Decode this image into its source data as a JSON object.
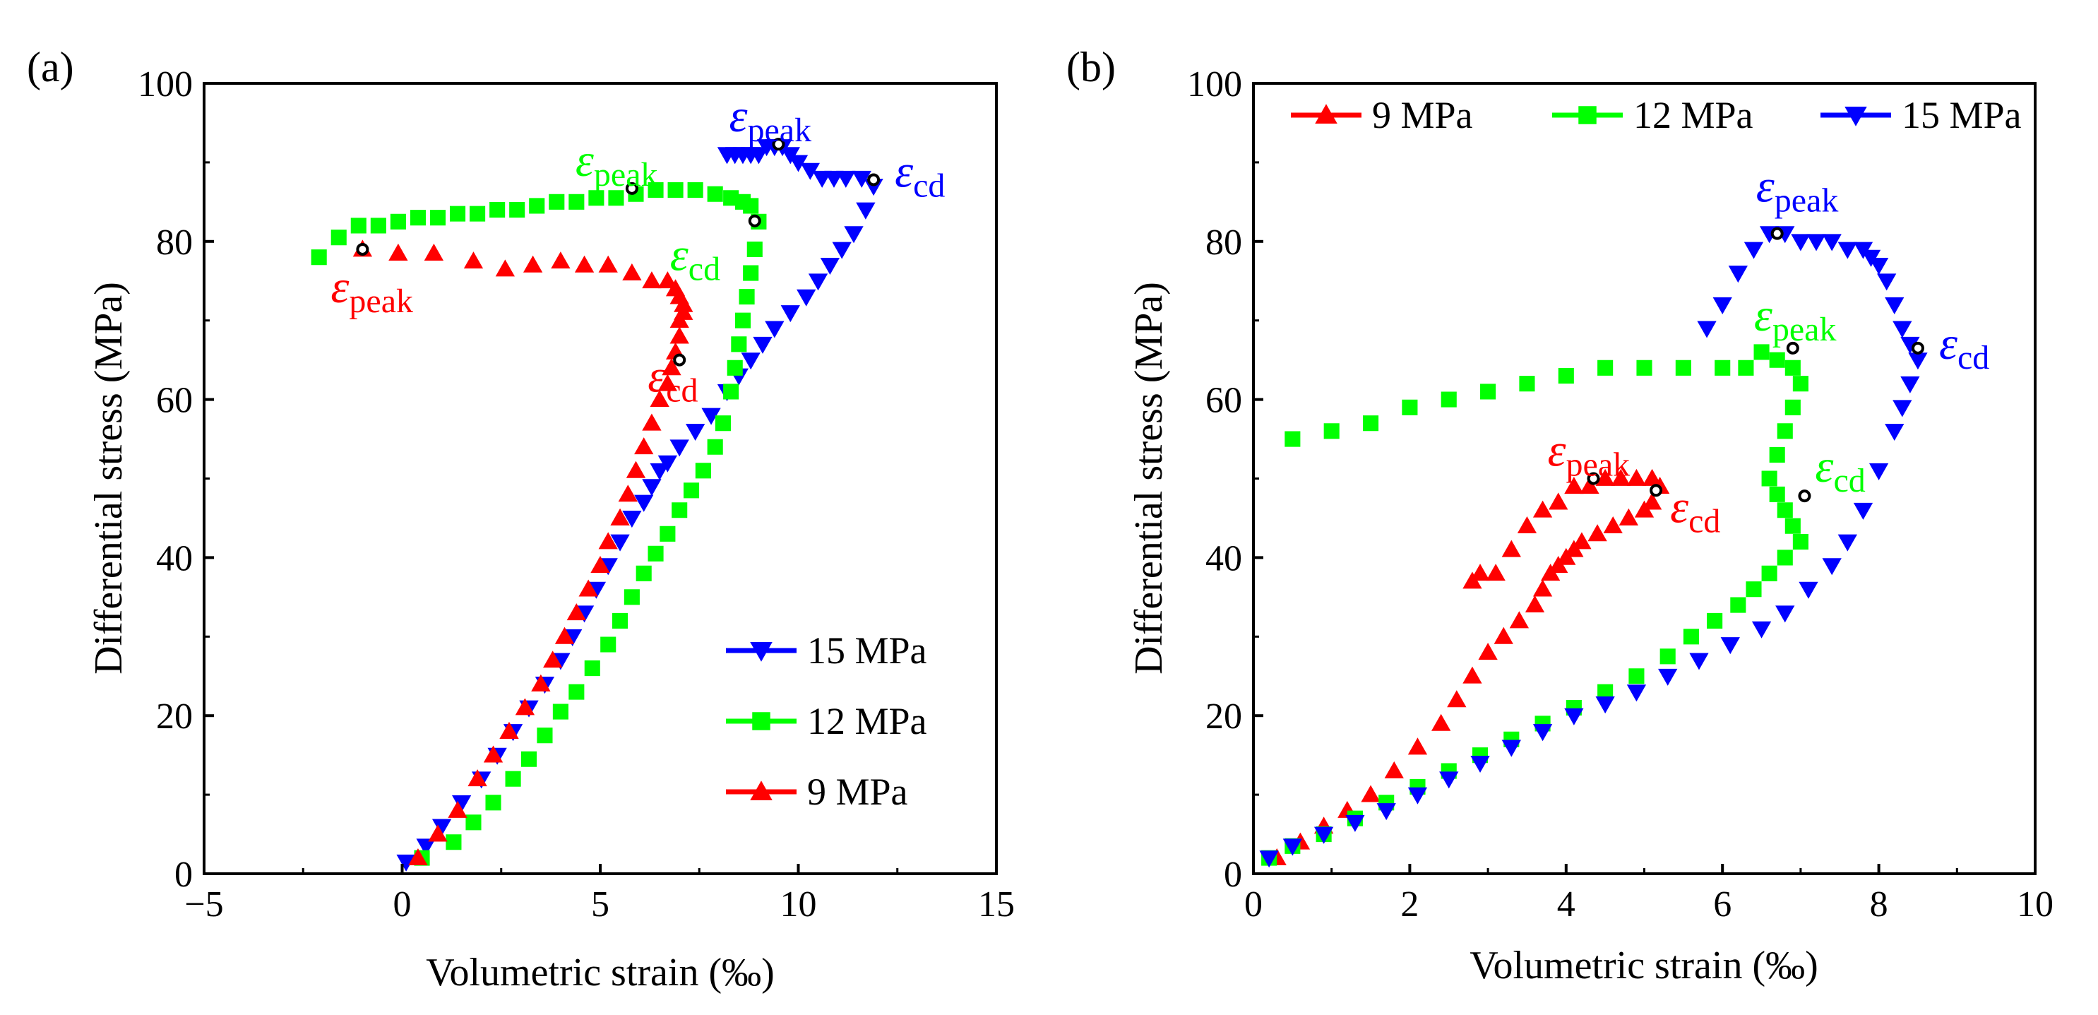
{
  "chart_data": [
    {
      "type": "scatter",
      "panel_label": "(a)",
      "xlabel": "Volumetric strain (‰)",
      "ylabel": "Differential stress (MPa)",
      "xlim": [
        -5,
        15
      ],
      "ylim": [
        0,
        100
      ],
      "xticks": [
        -5,
        0,
        5,
        10,
        15
      ],
      "xtick_labels": [
        "−5",
        "0",
        "5",
        "10",
        "15"
      ],
      "yticks": [
        0,
        20,
        40,
        60,
        80,
        100
      ],
      "ytick_labels": [
        "0",
        "20",
        "40",
        "60",
        "80",
        "100"
      ],
      "legend_position": "bottom-right",
      "series": [
        {
          "name": "15 MPa",
          "color": "#0000ff",
          "marker": "triangle-down",
          "x": [
            0.1,
            0.6,
            1.0,
            1.5,
            2.0,
            2.4,
            2.8,
            3.2,
            3.6,
            4.0,
            4.3,
            4.6,
            4.9,
            5.2,
            5.5,
            5.8,
            6.1,
            6.3,
            6.5,
            6.7,
            7.0,
            7.4,
            7.8,
            8.2,
            8.5,
            8.8,
            9.1,
            9.4,
            9.8,
            10.2,
            10.5,
            10.8,
            11.1,
            11.4,
            11.7,
            11.9,
            11.6,
            11.2,
            10.9,
            10.6,
            10.3,
            10.0,
            9.8,
            9.6,
            9.4,
            9.2,
            9.0,
            8.8,
            8.6,
            8.4,
            8.2
          ],
          "y": [
            1.5,
            3.5,
            6,
            9,
            12,
            15,
            18,
            21,
            24,
            27,
            30,
            33,
            36,
            39,
            42,
            45,
            47,
            49,
            51,
            52,
            54,
            56,
            58,
            61,
            63,
            65,
            67,
            69,
            71,
            73,
            75,
            77,
            79,
            81,
            84,
            87,
            88,
            88,
            88,
            88,
            89,
            90,
            91,
            92,
            92,
            92,
            91,
            91,
            91,
            91,
            91
          ]
        },
        {
          "name": "12 MPa",
          "color": "#00ff00",
          "marker": "square",
          "x": [
            0.5,
            1.3,
            1.8,
            2.3,
            2.8,
            3.2,
            3.6,
            4.0,
            4.4,
            4.8,
            5.2,
            5.5,
            5.8,
            6.1,
            6.4,
            6.7,
            7.0,
            7.3,
            7.6,
            7.9,
            8.1,
            8.3,
            8.4,
            8.5,
            8.6,
            8.7,
            8.8,
            8.9,
            9.0,
            8.8,
            8.6,
            8.3,
            7.9,
            7.4,
            6.9,
            6.4,
            5.9,
            5.4,
            4.9,
            4.4,
            3.9,
            3.4,
            2.9,
            2.4,
            1.9,
            1.4,
            0.9,
            0.4,
            -0.1,
            -0.6,
            -1.1,
            -1.6,
            -2.1
          ],
          "y": [
            2,
            4,
            6.5,
            9,
            12,
            14.5,
            17.5,
            20.5,
            23,
            26,
            29,
            32,
            35,
            38,
            40.5,
            43,
            46,
            48.5,
            51,
            54,
            57,
            61,
            64,
            67,
            70,
            73,
            76,
            79,
            82.5,
            84.5,
            85,
            85.5,
            86,
            86.5,
            86.5,
            86.5,
            86,
            85.5,
            85.5,
            85,
            85,
            84.5,
            84,
            84,
            83.5,
            83.5,
            83,
            83,
            82.5,
            82,
            82,
            80.5,
            78
          ]
        },
        {
          "name": "9 MPa",
          "color": "#ff0000",
          "marker": "triangle-up",
          "x": [
            0.4,
            0.9,
            1.4,
            1.9,
            2.3,
            2.7,
            3.1,
            3.5,
            3.8,
            4.1,
            4.4,
            4.7,
            5.0,
            5.2,
            5.5,
            5.7,
            5.9,
            6.1,
            6.3,
            6.5,
            6.7,
            6.8,
            6.9,
            7.0,
            7.0,
            7.1,
            7.1,
            7.0,
            6.9,
            6.7,
            6.3,
            5.8,
            5.2,
            4.6,
            4.0,
            3.3,
            2.6,
            1.8,
            0.8,
            -0.1,
            -1.0
          ],
          "y": [
            2,
            5,
            8,
            12,
            15,
            18,
            21,
            24,
            27,
            30,
            33,
            36,
            39,
            42,
            45,
            48,
            51,
            54,
            57,
            60,
            62,
            64,
            66,
            68,
            70,
            71,
            72,
            73,
            74,
            75,
            75,
            76,
            77,
            77,
            77.5,
            77,
            76.5,
            77.5,
            78.5,
            78.5,
            79
          ]
        }
      ],
      "annotations": [
        {
          "label": "ε",
          "subscript": "peak",
          "color": "#0000ff",
          "x": 9.5,
          "y": 92.3
        },
        {
          "label": "ε",
          "subscript": "cd",
          "color": "#0000ff",
          "x": 11.9,
          "y": 87.8
        },
        {
          "label": "ε",
          "subscript": "peak",
          "color": "#00ff00",
          "x": 5.8,
          "y": 86.7
        },
        {
          "label": "ε",
          "subscript": "cd",
          "color": "#00ff00",
          "x": 8.9,
          "y": 82.6
        },
        {
          "label": "ε",
          "subscript": "peak",
          "color": "#ff0000",
          "x": -1.0,
          "y": 79.0
        },
        {
          "label": "ε",
          "subscript": "cd",
          "color": "#ff0000",
          "x": 7.0,
          "y": 65.0
        }
      ]
    },
    {
      "type": "scatter",
      "panel_label": "(b)",
      "xlabel": "Volumetric strain (‰)",
      "ylabel": "Differential stress (MPa)",
      "xlim": [
        0,
        10
      ],
      "ylim": [
        0,
        100
      ],
      "xticks": [
        0,
        2,
        4,
        6,
        8,
        10
      ],
      "xtick_labels": [
        "0",
        "2",
        "4",
        "6",
        "8",
        "10"
      ],
      "yticks": [
        0,
        20,
        40,
        60,
        80,
        100
      ],
      "ytick_labels": [
        "0",
        "20",
        "40",
        "60",
        "80",
        "100"
      ],
      "legend_position": "top",
      "series": [
        {
          "name": "9 MPa",
          "color": "#ff0000",
          "marker": "triangle-up",
          "x": [
            0.3,
            0.6,
            0.9,
            1.2,
            1.5,
            1.8,
            2.1,
            2.4,
            2.6,
            2.8,
            3.0,
            3.2,
            3.4,
            3.6,
            3.7,
            3.8,
            3.9,
            4.0,
            4.1,
            4.2,
            4.4,
            4.6,
            4.8,
            5.0,
            5.1,
            5.2,
            5.1,
            4.9,
            4.7,
            4.5,
            4.3,
            4.1,
            3.9,
            3.7,
            3.5,
            3.3,
            3.1,
            2.9,
            2.8
          ],
          "y": [
            2,
            4,
            6,
            8,
            10,
            13,
            16,
            19,
            22,
            25,
            28,
            30,
            32,
            34,
            36,
            38,
            39,
            40,
            41,
            42,
            43,
            44,
            45,
            46,
            47,
            49,
            50,
            50,
            50,
            50,
            49,
            49,
            47,
            46,
            44,
            41,
            38,
            38,
            37
          ]
        },
        {
          "name": "12 MPa",
          "color": "#00ff00",
          "marker": "square",
          "x": [
            0.2,
            0.5,
            0.9,
            1.3,
            1.7,
            2.1,
            2.5,
            2.9,
            3.3,
            3.7,
            4.1,
            4.5,
            4.9,
            5.3,
            5.6,
            5.9,
            6.2,
            6.4,
            6.6,
            6.8,
            7.0,
            6.9,
            6.8,
            6.7,
            6.6,
            6.7,
            6.8,
            6.9,
            7.0,
            6.9,
            6.7,
            6.5,
            6.3,
            6.0,
            5.5,
            5.0,
            4.5,
            4.0,
            3.5,
            3.0,
            2.5,
            2.0,
            1.5,
            1.0,
            0.5
          ],
          "y": [
            2,
            3.5,
            5,
            7,
            9,
            11,
            13,
            15,
            17,
            19,
            21,
            23,
            25,
            27.5,
            30,
            32,
            34,
            36,
            38,
            40,
            42,
            44,
            46,
            48,
            50,
            53,
            56,
            59,
            62,
            64,
            65,
            66,
            64,
            64,
            64,
            64,
            64,
            63,
            62,
            61,
            60,
            59,
            57,
            56,
            55
          ]
        },
        {
          "name": "15 MPa",
          "color": "#0000ff",
          "marker": "triangle-down",
          "x": [
            0.2,
            0.5,
            0.9,
            1.3,
            1.7,
            2.1,
            2.5,
            2.9,
            3.3,
            3.7,
            4.1,
            4.5,
            4.9,
            5.3,
            5.7,
            6.1,
            6.5,
            6.8,
            7.1,
            7.4,
            7.6,
            7.8,
            8.0,
            8.2,
            8.3,
            8.4,
            8.5,
            8.4,
            8.3,
            8.2,
            8.1,
            8.0,
            7.9,
            7.8,
            7.6,
            7.4,
            7.2,
            7.0,
            6.8,
            6.6,
            6.4,
            6.2,
            6.0,
            5.8
          ],
          "y": [
            2,
            3.5,
            5,
            6.5,
            8,
            10,
            12,
            14,
            16,
            18,
            20,
            21.5,
            23,
            25,
            27,
            29,
            31,
            33,
            36,
            39,
            42,
            46,
            51,
            56,
            59,
            62,
            65,
            67,
            69,
            72,
            75,
            77,
            78,
            79,
            79,
            80,
            80,
            80,
            81,
            81,
            79,
            76,
            72,
            69
          ]
        }
      ],
      "annotations": [
        {
          "label": "ε",
          "subscript": "peak",
          "color": "#0000ff",
          "x": 6.7,
          "y": 81.0
        },
        {
          "label": "ε",
          "subscript": "cd",
          "color": "#0000ff",
          "x": 8.5,
          "y": 66.5
        },
        {
          "label": "ε",
          "subscript": "peak",
          "color": "#00ff00",
          "x": 6.9,
          "y": 66.5
        },
        {
          "label": "ε",
          "subscript": "cd",
          "color": "#00ff00",
          "x": 7.05,
          "y": 47.8
        },
        {
          "label": "ε",
          "subscript": "peak",
          "color": "#ff0000",
          "x": 4.35,
          "y": 50.0
        },
        {
          "label": "ε",
          "subscript": "cd",
          "color": "#ff0000",
          "x": 5.15,
          "y": 48.5
        }
      ]
    }
  ]
}
